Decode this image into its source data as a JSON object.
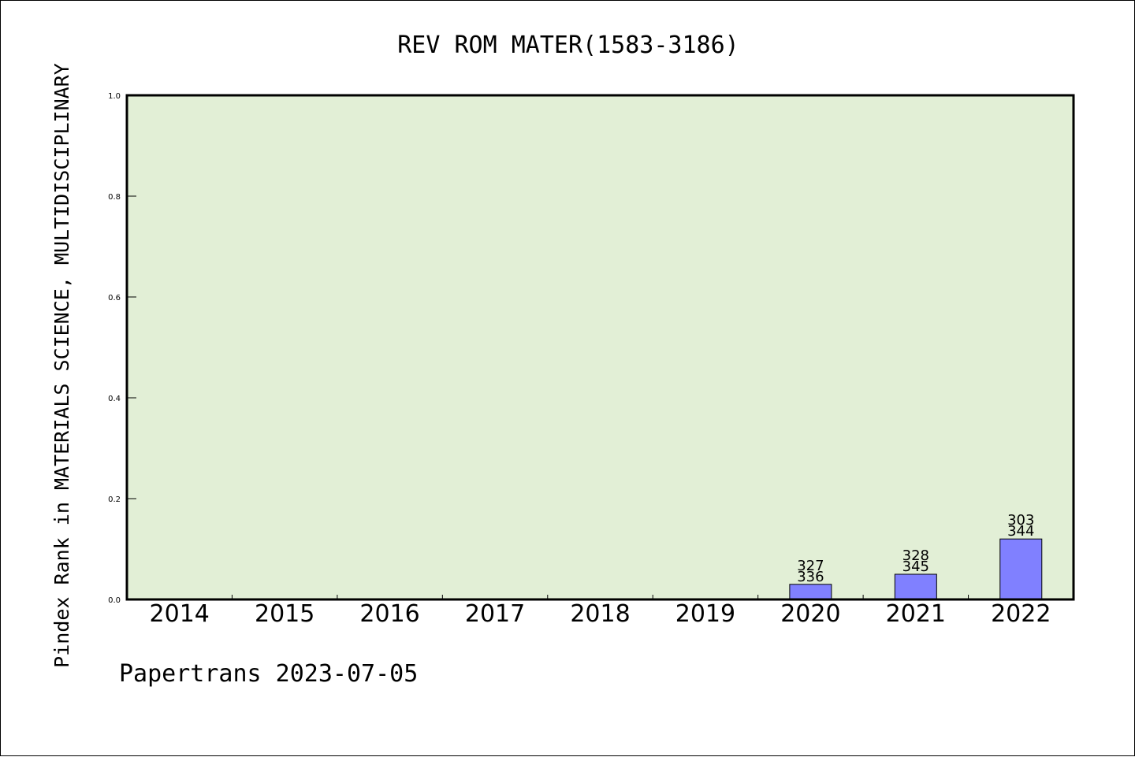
{
  "chart_data": {
    "type": "bar",
    "title": "REV ROM MATER(1583-3186)",
    "ylabel": "Pindex Rank in MATERIALS SCIENCE, MULTIDISCIPLINARY",
    "xlabel": "",
    "categories": [
      "2014",
      "2015",
      "2016",
      "2017",
      "2018",
      "2019",
      "2020",
      "2021",
      "2022"
    ],
    "values": [
      null,
      null,
      null,
      null,
      null,
      null,
      0.03,
      0.05,
      0.12
    ],
    "bar_labels": [
      [
        "",
        ""
      ],
      [
        "",
        ""
      ],
      [
        "",
        ""
      ],
      [
        "",
        ""
      ],
      [
        "",
        ""
      ],
      [
        "",
        ""
      ],
      [
        "327",
        "336"
      ],
      [
        "328",
        "345"
      ],
      [
        "303",
        "344"
      ]
    ],
    "ylim": [
      0,
      1.0
    ],
    "yticks": [
      "0.0",
      "0.2",
      "0.4",
      "0.6",
      "0.8",
      "1.0"
    ],
    "ytick_values": [
      0,
      0.2,
      0.4,
      0.6,
      0.8,
      1.0
    ],
    "grid": false,
    "plot_background": "#e2efd6",
    "bar_color": "#8080ff",
    "footer": "Papertrans 2023-07-05"
  }
}
